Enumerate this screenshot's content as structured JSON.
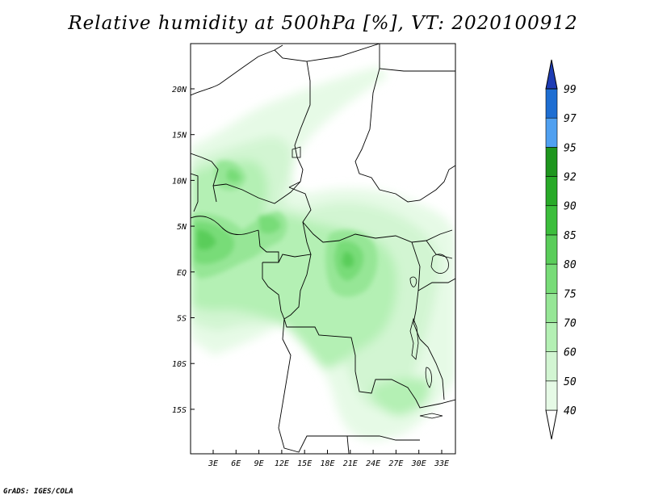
{
  "title": "Relative humidity at 500hPa [%], VT: 2020100912",
  "footer": "GrADS: IGES/COLA",
  "map": {
    "lon_ticks": [
      "3E",
      "6E",
      "9E",
      "12E",
      "15E",
      "18E",
      "21E",
      "24E",
      "27E",
      "30E",
      "33E"
    ],
    "lat_ticks": [
      "20N",
      "15N",
      "10N",
      "5N",
      "EQ",
      "5S",
      "10S",
      "15S"
    ]
  },
  "colorbar": {
    "levels": [
      "40",
      "50",
      "60",
      "70",
      "75",
      "80",
      "85",
      "90",
      "92",
      "95",
      "97",
      "99"
    ],
    "colors": [
      "#ffffff",
      "#e6fae6",
      "#d2f5d2",
      "#b4f0b4",
      "#96e696",
      "#78dc78",
      "#5acd5a",
      "#3cbe3c",
      "#28aa28",
      "#1e961e",
      "#50a0f0",
      "#1e6ed2",
      "#1e3cb4"
    ]
  }
}
